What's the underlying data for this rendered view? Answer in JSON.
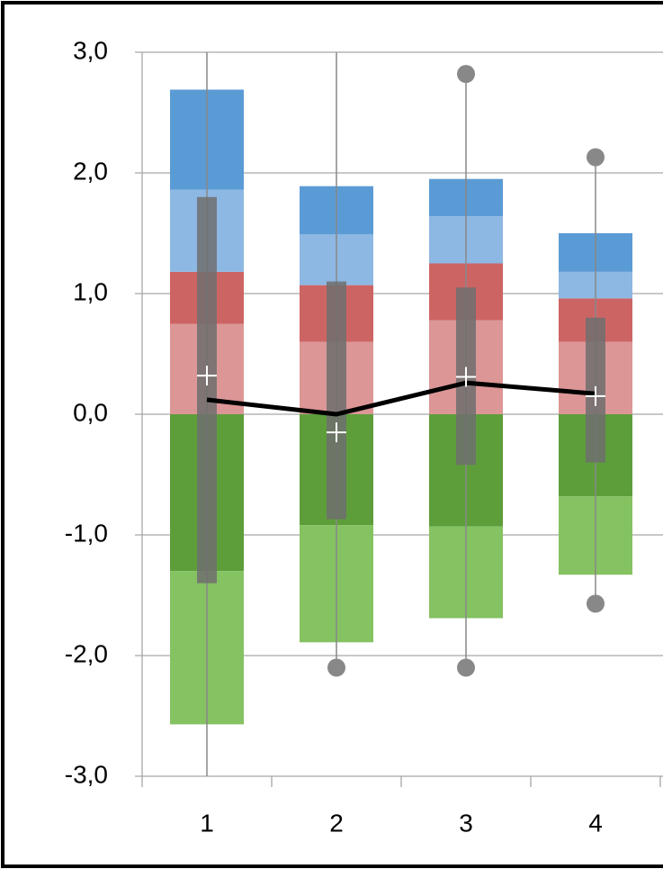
{
  "chart_data": {
    "type": "bar",
    "categories": [
      "1",
      "2",
      "3",
      "4"
    ],
    "series": [
      {
        "color": "#dc9696",
        "values": [
          0.75,
          0.6,
          0.78,
          0.6
        ]
      },
      {
        "color": "#cd6464",
        "values": [
          0.43,
          0.47,
          0.47,
          0.36
        ]
      },
      {
        "color": "#8db8e3",
        "values": [
          0.68,
          0.42,
          0.39,
          0.22
        ]
      },
      {
        "color": "#5b9bd5",
        "values": [
          0.83,
          0.4,
          0.31,
          0.32
        ]
      },
      {
        "color": "#5d9e3b",
        "values": [
          -1.3,
          -0.92,
          -0.93,
          -0.68
        ]
      },
      {
        "color": "#85c262",
        "values": [
          -1.27,
          -0.97,
          -0.76,
          -0.65
        ]
      }
    ],
    "box_high": [
      1.8,
      1.1,
      1.05,
      0.8
    ],
    "box_low": [
      -1.4,
      -0.87,
      -0.42,
      -0.4
    ],
    "box_color": "#6e6e6e",
    "whisker_high": [
      3.0,
      3.0,
      2.82,
      2.13
    ],
    "whisker_low": [
      -3.0,
      -2.1,
      -2.1,
      -1.57
    ],
    "whisker_color": "#888888",
    "means": [
      0.32,
      -0.15,
      0.31,
      0.15
    ],
    "line_values": [
      0.12,
      0.0,
      0.26,
      0.17
    ],
    "line_color": "#000000",
    "ylim": [
      -3,
      3
    ],
    "yticks": [
      {
        "value": 3,
        "label": "3,0"
      },
      {
        "value": 2,
        "label": "2,0"
      },
      {
        "value": 1,
        "label": "1,0"
      },
      {
        "value": 0,
        "label": "0,0"
      },
      {
        "value": -1,
        "label": "-1,0"
      },
      {
        "value": -2,
        "label": "-2,0"
      },
      {
        "value": -3,
        "label": "-3,0"
      }
    ],
    "grid": true
  }
}
